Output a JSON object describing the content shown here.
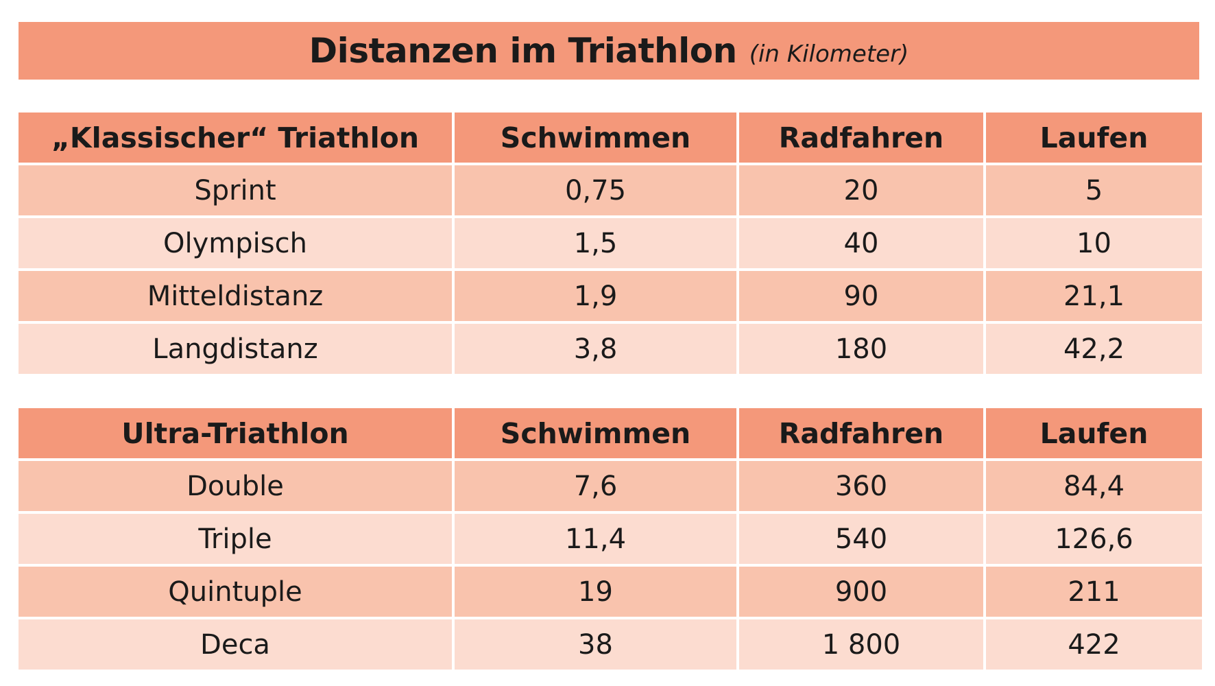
{
  "title": {
    "main": "Distanzen im Triathlon",
    "sub": "(in Kilometer)"
  },
  "colors": {
    "header": "#f4987a",
    "row_dark": "#f9c3ad",
    "row_light": "#fcdcd0"
  },
  "chart_data": [
    {
      "type": "table",
      "title": "Distanzen im Triathlon (in Kilometer)",
      "columns": [
        "„Klassischer“ Triathlon",
        "Schwimmen",
        "Radfahren",
        "Laufen"
      ],
      "rows": [
        [
          "Sprint",
          "0,75",
          "20",
          "5"
        ],
        [
          "Olympisch",
          "1,5",
          "40",
          "10"
        ],
        [
          "Mitteldistanz",
          "1,9",
          "90",
          "21,1"
        ],
        [
          "Langdistanz",
          "3,8",
          "180",
          "42,2"
        ]
      ]
    },
    {
      "type": "table",
      "columns": [
        "Ultra-Triathlon",
        "Schwimmen",
        "Radfahren",
        "Laufen"
      ],
      "rows": [
        [
          "Double",
          "7,6",
          "360",
          "84,4"
        ],
        [
          "Triple",
          "11,4",
          "540",
          "126,6"
        ],
        [
          "Quintuple",
          "19",
          "900",
          "211"
        ],
        [
          "Deca",
          "38",
          "1 800",
          "422"
        ]
      ]
    }
  ]
}
